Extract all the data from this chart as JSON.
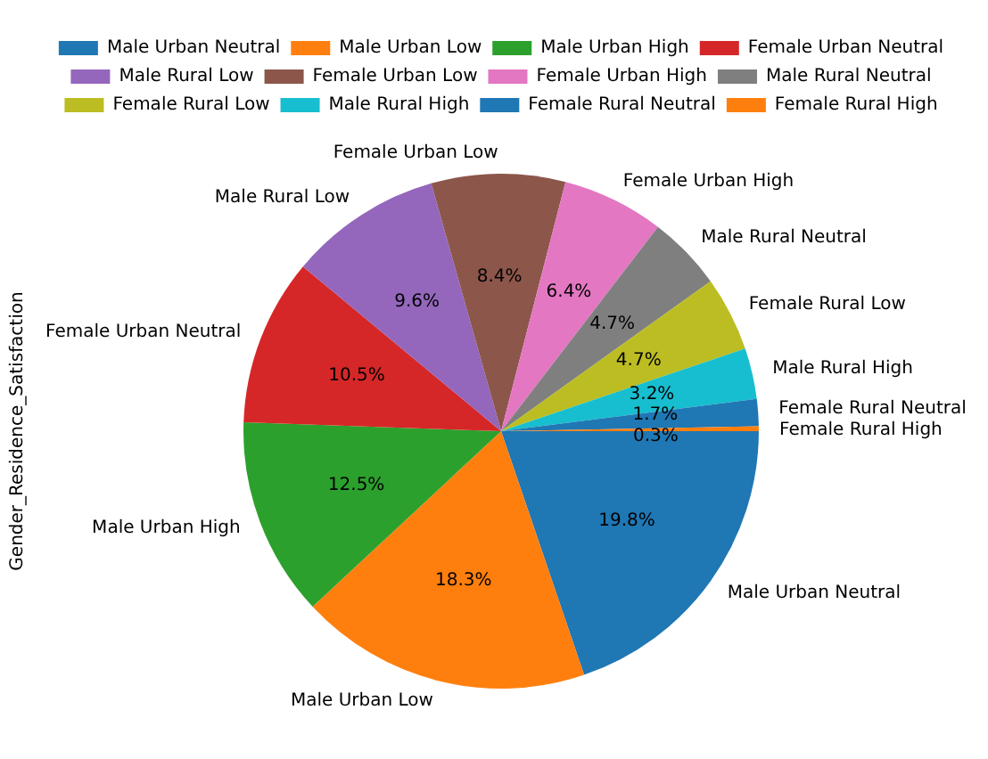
{
  "chart_data": {
    "type": "pie",
    "ylabel": "Gender_Residence_Satisfaction",
    "categories": [
      "Male Urban Neutral",
      "Male Urban Low",
      "Male Urban High",
      "Female Urban Neutral",
      "Male Rural Low",
      "Female Urban Low",
      "Female Urban High",
      "Male Rural Neutral",
      "Female Rural Low",
      "Male Rural High",
      "Female Rural Neutral",
      "Female Rural High"
    ],
    "values": [
      19.8,
      18.3,
      12.5,
      10.5,
      9.6,
      8.4,
      6.4,
      4.7,
      4.7,
      3.2,
      1.7,
      0.3
    ],
    "value_labels": [
      "19.8%",
      "18.3%",
      "12.5%",
      "10.5%",
      "9.6%",
      "8.4%",
      "6.4%",
      "4.7%",
      "4.7%",
      "3.2%",
      "1.7%",
      "0.3%"
    ],
    "colors": [
      "#1f77b4",
      "#ff7f0e",
      "#2ca02c",
      "#d62728",
      "#9467bd",
      "#8c564b",
      "#e377c2",
      "#7f7f7f",
      "#bcbd22",
      "#17becf",
      "#1f77b4",
      "#ff7f0e"
    ],
    "legend": "top"
  }
}
